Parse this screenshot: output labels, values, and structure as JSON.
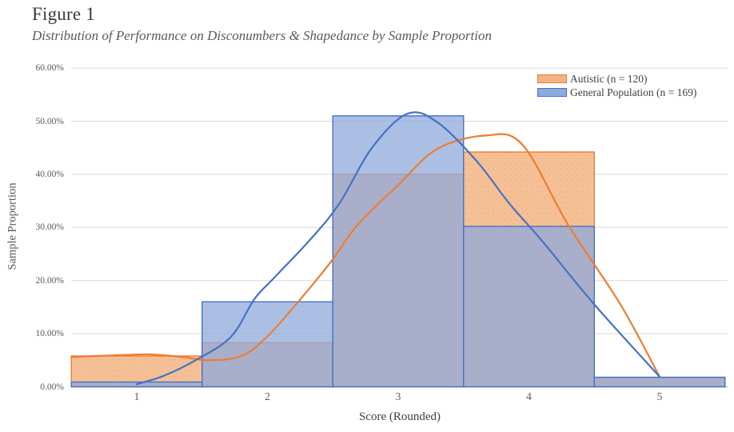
{
  "figure": {
    "title": "Figure 1",
    "subtitle": "Distribution of Performance on Disconumbers & Shapedance by Sample Proportion"
  },
  "chart_data": {
    "type": "bar",
    "subtype": "overlaid-histogram-with-density-curves",
    "title": "Figure 1",
    "subtitle": "Distribution of Performance on Disconumbers & Shapedance by Sample Proportion",
    "xlabel": "Score (Rounded)",
    "ylabel": "Sample Proportion",
    "categories": [
      1,
      2,
      3,
      4,
      5
    ],
    "xlim": [
      0.5,
      5.5
    ],
    "ylim": [
      0,
      60
    ],
    "y_tick_labels": [
      "0.00%",
      "10.00%",
      "20.00%",
      "30.00%",
      "40.00%",
      "50.00%",
      "60.00%"
    ],
    "grid": true,
    "legend_position": "top-right",
    "series": [
      {
        "name": "Autistic (n = 120)",
        "color": "#ED7D31",
        "fill": "#F6C096",
        "legend_fill": "#F4B183",
        "bar_values_pct": [
          5.8,
          8.3,
          40.0,
          44.2,
          1.7
        ],
        "curve_points_pct": [
          [
            0.5,
            5.6
          ],
          [
            0.8,
            5.9
          ],
          [
            1.1,
            6.1
          ],
          [
            1.35,
            5.6
          ],
          [
            1.55,
            5.0
          ],
          [
            1.8,
            5.8
          ],
          [
            2.0,
            9.5
          ],
          [
            2.28,
            17.3
          ],
          [
            2.5,
            24.0
          ],
          [
            2.68,
            30.2
          ],
          [
            3.0,
            38.0
          ],
          [
            3.3,
            44.8
          ],
          [
            3.67,
            47.3
          ],
          [
            3.95,
            45.6
          ],
          [
            4.3,
            30.5
          ],
          [
            4.7,
            15.5
          ],
          [
            5.0,
            1.9
          ]
        ]
      },
      {
        "name": "General Population (n = 169)",
        "color": "#4472C4",
        "fill": "#8FAADC",
        "legend_fill": "#8FAADC",
        "bar_values_pct": [
          0.9,
          16.0,
          51.0,
          30.2,
          1.8
        ],
        "curve_points_pct": [
          [
            1.0,
            0.5
          ],
          [
            1.2,
            2.0
          ],
          [
            1.45,
            5.0
          ],
          [
            1.72,
            9.4
          ],
          [
            1.9,
            16.5
          ],
          [
            2.05,
            20.5
          ],
          [
            2.33,
            27.8
          ],
          [
            2.55,
            34.5
          ],
          [
            2.8,
            45.0
          ],
          [
            3.07,
            51.4
          ],
          [
            3.3,
            49.8
          ],
          [
            3.6,
            42.5
          ],
          [
            3.85,
            34.5
          ],
          [
            4.1,
            27.5
          ],
          [
            4.5,
            15.5
          ],
          [
            5.0,
            1.9
          ]
        ]
      }
    ],
    "gridline_color": "#D9D9D9",
    "axis_line_color": "#ADADAD"
  }
}
